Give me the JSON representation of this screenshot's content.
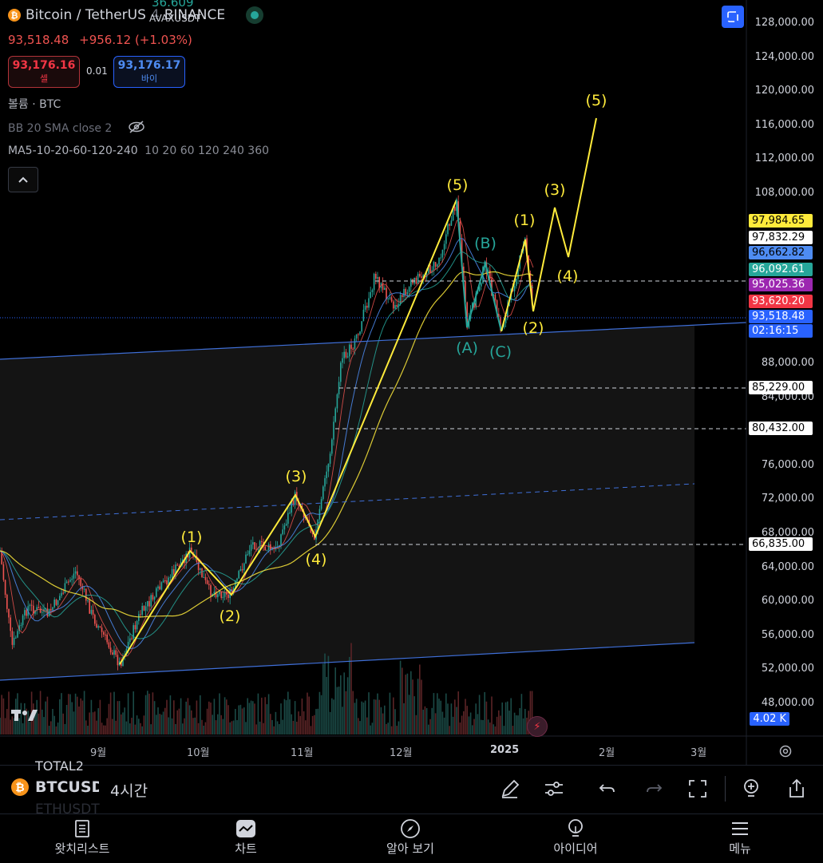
{
  "header": {
    "symbol_name": "Bitcoin / TetherUS",
    "interval": "4",
    "exchange": "BINANCE",
    "overlay_price": "36.609",
    "overlay_symbol": "AVAXUSDT",
    "last_price": "93,518.48",
    "change": "+956.12 (+1.03%)"
  },
  "trade": {
    "sell_price": "93,176.16",
    "sell_label": "셀",
    "spread": "0.01",
    "buy_price": "93,176.17",
    "buy_label": "바이"
  },
  "indicators": {
    "volume": "볼륨 · BTC",
    "bb": "BB 20 SMA close 2",
    "ma_name": "MA5-10-20-60-120-240",
    "ma_values": "10 20 60 120 240 360"
  },
  "price_axis": {
    "ticks": [
      "128,000.00",
      "124,000.00",
      "120,000.00",
      "116,000.00",
      "112,000.00",
      "108,000.00",
      "88,000.00",
      "84,000.00",
      "76,000.00",
      "72,000.00",
      "68,000.00",
      "64,000.00",
      "60,000.00",
      "56,000.00",
      "52,000.00",
      "48,000.00"
    ],
    "tags": [
      {
        "label": "97,984.65",
        "value": 97984.65,
        "bg": "#ffeb3b",
        "fg": "#000000"
      },
      {
        "label": "97,832.29",
        "value": 97832.29,
        "bg": "#ffffff",
        "fg": "#000000"
      },
      {
        "label": "96,662.82",
        "value": 96662.82,
        "bg": "#4e8cf2",
        "fg": "#000000"
      },
      {
        "label": "96,092.61",
        "value": 96092.61,
        "bg": "#26a69a",
        "fg": "#ffffff"
      },
      {
        "label": "95,025.36",
        "value": 95025.36,
        "bg": "#9c27b0",
        "fg": "#ffffff"
      },
      {
        "label": "93,620.20",
        "value": 93620.2,
        "bg": "#f23645",
        "fg": "#ffffff"
      },
      {
        "label": "93,518.48",
        "value": 93518.48,
        "bg": "#2962ff",
        "fg": "#ffffff"
      }
    ],
    "countdown": "02:16:15",
    "level_tags": [
      "85,229.00",
      "80,432.00",
      "66,835.00"
    ],
    "volume_tag": "4.02 K"
  },
  "time_axis": {
    "months": [
      "9월",
      "10월",
      "11월",
      "12월",
      "2025",
      "2월",
      "3월"
    ]
  },
  "wave_labels": {
    "impulse": [
      "(1)",
      "(2)",
      "(3)",
      "(4)",
      "(5)"
    ],
    "correction": [
      "(A)",
      "(B)",
      "(C)"
    ],
    "new_wave": [
      "(1)",
      "(2)",
      "(3)",
      "(4)",
      "(5)"
    ]
  },
  "toolbar": {
    "symbol": "BTCUSDT",
    "interval": "4시간",
    "ghost_1": "TOTAL2",
    "ghost_2": "ETHUSDT"
  },
  "nav": {
    "items": [
      "왓치리스트",
      "차트",
      "알아 보기",
      "아이디어",
      "메뉴"
    ]
  },
  "colors": {
    "wave_yellow": "#ffeb3b",
    "wave_teal": "#26a69a",
    "bg": "#000000",
    "accent": "#2962ff"
  }
}
